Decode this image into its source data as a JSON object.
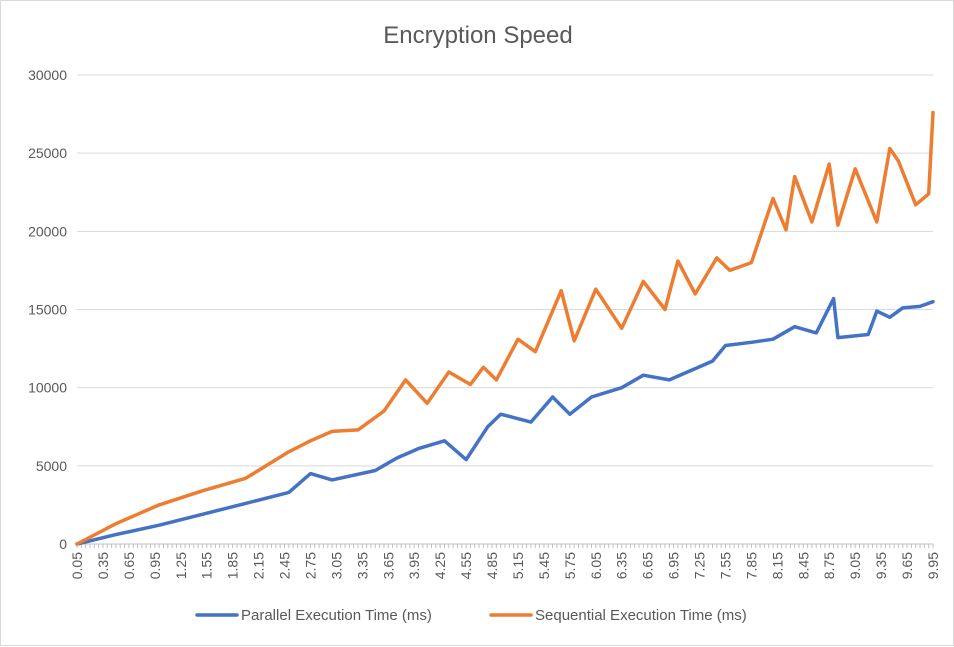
{
  "chart_data": {
    "type": "line",
    "title": "Encryption Speed",
    "xlabel": "",
    "ylabel": "",
    "ylim": [
      0,
      30000
    ],
    "y_ticks": [
      "0",
      "5000",
      "10000",
      "15000",
      "20000",
      "25000",
      "30000"
    ],
    "x_tick_labels": [
      "0.05",
      "0.35",
      "0.65",
      "0.95",
      "1.25",
      "1.55",
      "1.85",
      "2.15",
      "2.45",
      "2.75",
      "3.05",
      "3.35",
      "3.65",
      "3.95",
      "4.25",
      "4.55",
      "4.85",
      "5.15",
      "5.45",
      "5.75",
      "6.05",
      "6.35",
      "6.65",
      "6.95",
      "7.25",
      "7.55",
      "7.85",
      "8.15",
      "8.45",
      "8.75",
      "9.05",
      "9.35",
      "9.65",
      "9.95"
    ],
    "x_range": [
      0.05,
      9.95
    ],
    "x_step": 0.05,
    "grid": "horizontal",
    "legend_position": "bottom",
    "series": [
      {
        "name": "Parallel Execution Time (ms)",
        "color": "#4472c4",
        "points": [
          [
            0.05,
            0
          ],
          [
            0.5,
            600
          ],
          [
            1.0,
            1200
          ],
          [
            1.5,
            1900
          ],
          [
            2.0,
            2600
          ],
          [
            2.5,
            3300
          ],
          [
            2.75,
            4500
          ],
          [
            3.0,
            4100
          ],
          [
            3.5,
            4700
          ],
          [
            3.75,
            5500
          ],
          [
            4.0,
            6100
          ],
          [
            4.3,
            6600
          ],
          [
            4.55,
            5400
          ],
          [
            4.8,
            7500
          ],
          [
            4.95,
            8300
          ],
          [
            5.3,
            7800
          ],
          [
            5.55,
            9400
          ],
          [
            5.75,
            8300
          ],
          [
            6.0,
            9400
          ],
          [
            6.35,
            10000
          ],
          [
            6.6,
            10800
          ],
          [
            6.9,
            10500
          ],
          [
            7.15,
            11100
          ],
          [
            7.4,
            11700
          ],
          [
            7.55,
            12700
          ],
          [
            7.85,
            12900
          ],
          [
            8.1,
            13100
          ],
          [
            8.35,
            13900
          ],
          [
            8.6,
            13500
          ],
          [
            8.8,
            15700
          ],
          [
            8.85,
            13200
          ],
          [
            9.2,
            13400
          ],
          [
            9.3,
            14900
          ],
          [
            9.45,
            14500
          ],
          [
            9.6,
            15100
          ],
          [
            9.8,
            15200
          ],
          [
            9.95,
            15500
          ]
        ]
      },
      {
        "name": "Sequential Execution Time (ms)",
        "color": "#ed7d31",
        "points": [
          [
            0.05,
            0
          ],
          [
            0.5,
            1300
          ],
          [
            1.0,
            2500
          ],
          [
            1.5,
            3400
          ],
          [
            2.0,
            4200
          ],
          [
            2.5,
            5900
          ],
          [
            2.75,
            6600
          ],
          [
            3.0,
            7200
          ],
          [
            3.3,
            7300
          ],
          [
            3.6,
            8500
          ],
          [
            3.85,
            10500
          ],
          [
            4.1,
            9000
          ],
          [
            4.35,
            11000
          ],
          [
            4.6,
            10200
          ],
          [
            4.75,
            11300
          ],
          [
            4.9,
            10500
          ],
          [
            5.15,
            13100
          ],
          [
            5.35,
            12300
          ],
          [
            5.65,
            16200
          ],
          [
            5.8,
            13000
          ],
          [
            6.05,
            16300
          ],
          [
            6.35,
            13800
          ],
          [
            6.6,
            16800
          ],
          [
            6.85,
            15000
          ],
          [
            7.0,
            18100
          ],
          [
            7.2,
            16000
          ],
          [
            7.45,
            18300
          ],
          [
            7.6,
            17500
          ],
          [
            7.85,
            18000
          ],
          [
            8.1,
            22100
          ],
          [
            8.25,
            20100
          ],
          [
            8.35,
            23500
          ],
          [
            8.55,
            20600
          ],
          [
            8.75,
            24300
          ],
          [
            8.85,
            20400
          ],
          [
            9.05,
            24000
          ],
          [
            9.3,
            20600
          ],
          [
            9.45,
            25300
          ],
          [
            9.55,
            24500
          ],
          [
            9.75,
            21700
          ],
          [
            9.9,
            22400
          ],
          [
            9.95,
            27600
          ]
        ]
      }
    ]
  }
}
